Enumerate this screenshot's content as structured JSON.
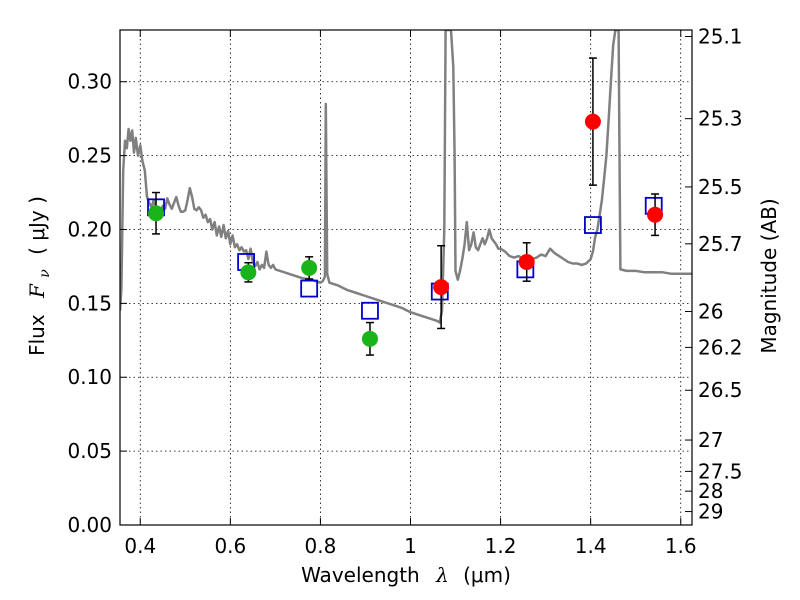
{
  "chart_data": {
    "type": "scatter",
    "xlabel_text": "Wavelength",
    "xlabel_symbol": "λ",
    "xlabel_unit": "(μm)",
    "ylabel_text": "Flux",
    "ylabel_symbol": "F",
    "ylabel_subscript": "ν",
    "ylabel_unit": "( μJy )",
    "y2label": "Magnitude (AB)",
    "xlim": [
      0.355,
      1.625
    ],
    "ylim": [
      0.0,
      0.335
    ],
    "grid": true,
    "x_ticks": [
      0.4,
      0.6,
      0.8,
      1.0,
      1.2,
      1.4,
      1.6
    ],
    "x_tick_labels": [
      "0.4",
      "0.6",
      "0.8",
      "1",
      "1.2",
      "1.4",
      "1.6"
    ],
    "y_ticks": [
      0.0,
      0.05,
      0.1,
      0.15,
      0.2,
      0.25,
      0.3
    ],
    "y_tick_labels": [
      "0.00",
      "0.05",
      "0.10",
      "0.15",
      "0.20",
      "0.25",
      "0.30"
    ],
    "mag_ticks": [
      {
        "label": "25.1",
        "flux": 0.3306
      },
      {
        "label": "25.3",
        "flux": 0.275
      },
      {
        "label": "25.5",
        "flux": 0.2288
      },
      {
        "label": "25.7",
        "flux": 0.1903
      },
      {
        "label": "26",
        "flux": 0.1445
      },
      {
        "label": "26.2",
        "flux": 0.1202
      },
      {
        "label": "26.5",
        "flux": 0.0912
      },
      {
        "label": "27",
        "flux": 0.0575
      },
      {
        "label": "27.5",
        "flux": 0.0363
      },
      {
        "label": "28",
        "flux": 0.0229
      },
      {
        "label": "29",
        "flux": 0.0091
      }
    ],
    "series": [
      {
        "marker": "open-square",
        "color": "#0000cc",
        "points": [
          {
            "x": 0.435,
            "y": 0.215
          },
          {
            "x": 0.635,
            "y": 0.178
          },
          {
            "x": 0.775,
            "y": 0.16
          },
          {
            "x": 0.91,
            "y": 0.145
          },
          {
            "x": 1.065,
            "y": 0.158
          },
          {
            "x": 1.255,
            "y": 0.173
          },
          {
            "x": 1.405,
            "y": 0.203
          },
          {
            "x": 1.54,
            "y": 0.216
          }
        ]
      },
      {
        "marker": "filled-circle",
        "color": "#1ab31a",
        "points": [
          {
            "x": 0.435,
            "y": 0.211,
            "yerr": 0.014
          },
          {
            "x": 0.64,
            "y": 0.171,
            "yerr": 0.0065
          },
          {
            "x": 0.775,
            "y": 0.174,
            "yerr": 0.0075
          },
          {
            "x": 0.91,
            "y": 0.126,
            "yerr": 0.011
          }
        ]
      },
      {
        "marker": "filled-circle",
        "color": "#ff0000",
        "points": [
          {
            "x": 1.068,
            "y": 0.161,
            "yerr": 0.028
          },
          {
            "x": 1.258,
            "y": 0.178,
            "yerr": 0.013
          },
          {
            "x": 1.405,
            "y": 0.273,
            "yerr": 0.043
          },
          {
            "x": 1.543,
            "y": 0.21,
            "yerr": 0.014
          }
        ]
      },
      {
        "marker": "line",
        "color": "#808080",
        "points": [
          [
            0.355,
            0.145
          ],
          [
            0.358,
            0.16
          ],
          [
            0.362,
            0.24
          ],
          [
            0.366,
            0.26
          ],
          [
            0.37,
            0.255
          ],
          [
            0.374,
            0.268
          ],
          [
            0.378,
            0.26
          ],
          [
            0.382,
            0.267
          ],
          [
            0.386,
            0.252
          ],
          [
            0.39,
            0.262
          ],
          [
            0.395,
            0.25
          ],
          [
            0.4,
            0.257
          ],
          [
            0.405,
            0.246
          ],
          [
            0.41,
            0.24
          ],
          [
            0.415,
            0.222
          ],
          [
            0.42,
            0.218
          ],
          [
            0.425,
            0.215
          ],
          [
            0.43,
            0.22
          ],
          [
            0.435,
            0.214
          ],
          [
            0.44,
            0.21
          ],
          [
            0.445,
            0.212
          ],
          [
            0.45,
            0.216
          ],
          [
            0.455,
            0.214
          ],
          [
            0.46,
            0.221
          ],
          [
            0.465,
            0.217
          ],
          [
            0.47,
            0.214
          ],
          [
            0.475,
            0.218
          ],
          [
            0.48,
            0.222
          ],
          [
            0.485,
            0.216
          ],
          [
            0.49,
            0.212
          ],
          [
            0.495,
            0.212
          ],
          [
            0.5,
            0.213
          ],
          [
            0.505,
            0.22
          ],
          [
            0.51,
            0.228
          ],
          [
            0.515,
            0.222
          ],
          [
            0.52,
            0.214
          ],
          [
            0.525,
            0.213
          ],
          [
            0.53,
            0.215
          ],
          [
            0.535,
            0.213
          ],
          [
            0.54,
            0.208
          ],
          [
            0.545,
            0.21
          ],
          [
            0.55,
            0.205
          ],
          [
            0.555,
            0.207
          ],
          [
            0.56,
            0.2
          ],
          [
            0.565,
            0.205
          ],
          [
            0.57,
            0.196
          ],
          [
            0.575,
            0.202
          ],
          [
            0.58,
            0.195
          ],
          [
            0.585,
            0.203
          ],
          [
            0.59,
            0.194
          ],
          [
            0.595,
            0.199
          ],
          [
            0.6,
            0.19
          ],
          [
            0.605,
            0.196
          ],
          [
            0.61,
            0.188
          ],
          [
            0.615,
            0.19
          ],
          [
            0.62,
            0.186
          ],
          [
            0.625,
            0.188
          ],
          [
            0.63,
            0.185
          ],
          [
            0.635,
            0.186
          ],
          [
            0.64,
            0.18
          ],
          [
            0.645,
            0.187
          ],
          [
            0.65,
            0.178
          ],
          [
            0.655,
            0.175
          ],
          [
            0.66,
            0.178
          ],
          [
            0.665,
            0.173
          ],
          [
            0.67,
            0.176
          ],
          [
            0.675,
            0.174
          ],
          [
            0.68,
            0.185
          ],
          [
            0.685,
            0.176
          ],
          [
            0.69,
            0.174
          ],
          [
            0.695,
            0.176
          ],
          [
            0.7,
            0.173
          ],
          [
            0.72,
            0.171
          ],
          [
            0.74,
            0.169
          ],
          [
            0.76,
            0.167
          ],
          [
            0.78,
            0.166
          ],
          [
            0.8,
            0.164
          ],
          [
            0.805,
            0.165
          ],
          [
            0.81,
            0.168
          ],
          [
            0.812,
            0.285
          ],
          [
            0.815,
            0.17
          ],
          [
            0.82,
            0.164
          ],
          [
            0.84,
            0.162
          ],
          [
            0.86,
            0.159
          ],
          [
            0.88,
            0.157
          ],
          [
            0.9,
            0.155
          ],
          [
            0.92,
            0.153
          ],
          [
            0.94,
            0.151
          ],
          [
            0.96,
            0.149
          ],
          [
            0.98,
            0.147
          ],
          [
            1.0,
            0.144
          ],
          [
            1.02,
            0.142
          ],
          [
            1.04,
            0.14
          ],
          [
            1.06,
            0.138
          ],
          [
            1.065,
            0.137
          ],
          [
            1.07,
            0.145
          ],
          [
            1.075,
            0.2
          ],
          [
            1.078,
            0.335
          ],
          [
            1.09,
            0.335
          ],
          [
            1.095,
            0.31
          ],
          [
            1.098,
            0.25
          ],
          [
            1.1,
            0.172
          ],
          [
            1.105,
            0.166
          ],
          [
            1.11,
            0.172
          ],
          [
            1.115,
            0.18
          ],
          [
            1.12,
            0.19
          ],
          [
            1.125,
            0.205
          ],
          [
            1.13,
            0.186
          ],
          [
            1.135,
            0.19
          ],
          [
            1.14,
            0.198
          ],
          [
            1.145,
            0.188
          ],
          [
            1.15,
            0.186
          ],
          [
            1.155,
            0.19
          ],
          [
            1.16,
            0.194
          ],
          [
            1.165,
            0.19
          ],
          [
            1.17,
            0.194
          ],
          [
            1.175,
            0.2
          ],
          [
            1.18,
            0.194
          ],
          [
            1.185,
            0.192
          ],
          [
            1.19,
            0.19
          ],
          [
            1.195,
            0.187
          ],
          [
            1.2,
            0.187
          ],
          [
            1.21,
            0.185
          ],
          [
            1.22,
            0.182
          ],
          [
            1.23,
            0.181
          ],
          [
            1.24,
            0.182
          ],
          [
            1.25,
            0.18
          ],
          [
            1.26,
            0.181
          ],
          [
            1.27,
            0.18
          ],
          [
            1.28,
            0.181
          ],
          [
            1.29,
            0.183
          ],
          [
            1.3,
            0.182
          ],
          [
            1.31,
            0.187
          ],
          [
            1.32,
            0.184
          ],
          [
            1.33,
            0.182
          ],
          [
            1.34,
            0.18
          ],
          [
            1.35,
            0.178
          ],
          [
            1.36,
            0.177
          ],
          [
            1.37,
            0.177
          ],
          [
            1.38,
            0.176
          ],
          [
            1.39,
            0.177
          ],
          [
            1.4,
            0.18
          ],
          [
            1.405,
            0.185
          ],
          [
            1.41,
            0.195
          ],
          [
            1.415,
            0.2
          ],
          [
            1.42,
            0.21
          ],
          [
            1.425,
            0.22
          ],
          [
            1.43,
            0.235
          ],
          [
            1.435,
            0.25
          ],
          [
            1.44,
            0.275
          ],
          [
            1.445,
            0.3
          ],
          [
            1.45,
            0.325
          ],
          [
            1.455,
            0.335
          ],
          [
            1.462,
            0.335
          ],
          [
            1.464,
            0.25
          ],
          [
            1.466,
            0.173
          ],
          [
            1.48,
            0.172
          ],
          [
            1.5,
            0.172
          ],
          [
            1.52,
            0.171
          ],
          [
            1.54,
            0.171
          ],
          [
            1.56,
            0.171
          ],
          [
            1.58,
            0.17
          ],
          [
            1.6,
            0.17
          ],
          [
            1.625,
            0.17
          ]
        ]
      }
    ]
  }
}
